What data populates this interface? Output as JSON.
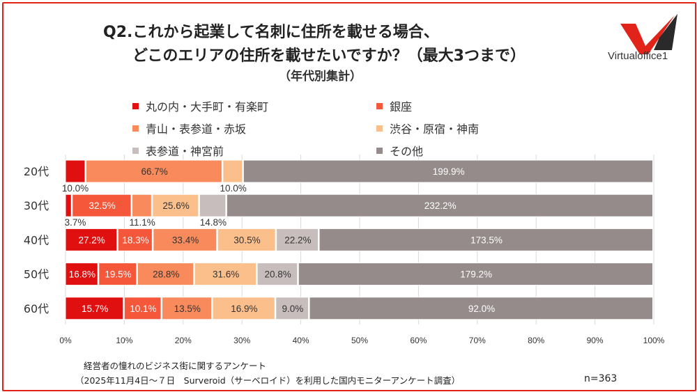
{
  "title_line1": "Q2.これから起業して名刺に住所を載せる場合、",
  "title_line2": "どこのエリアの住所を載せたいですか？（最大3つまで）",
  "subtitle": "（年代別集計）",
  "brand": "Virtualoffice1",
  "footer": {
    "survey_name": "経営者の憧れのビジネス街に関するアンケート",
    "survey_detail": "（2025年11月4日～７日　Surveroid（サーベロイド）を利用した国内モニターアンケート調査）",
    "sample": "n=363"
  },
  "chart_data": {
    "type": "bar",
    "orientation": "horizontal",
    "stacked": "100%",
    "categories": [
      "20代",
      "30代",
      "40代",
      "50代",
      "60代"
    ],
    "series": [
      {
        "name": "丸の内・大手町・有楽町",
        "color": "#e01010",
        "values": [
          10.0,
          3.7,
          27.2,
          16.8,
          15.7
        ],
        "label_color": "#fff"
      },
      {
        "name": "銀座",
        "color": "#f4573a",
        "values": [
          0,
          32.5,
          18.3,
          19.5,
          10.1
        ],
        "label_color": "#fff"
      },
      {
        "name": "青山・表参道・赤坂",
        "color": "#f88a5c",
        "values": [
          66.7,
          11.1,
          33.4,
          28.8,
          13.5
        ],
        "label_color": "#333"
      },
      {
        "name": "渋谷・原宿・神南",
        "color": "#fbbf8c",
        "values": [
          10.0,
          25.6,
          30.5,
          31.6,
          16.9
        ],
        "label_color": "#333"
      },
      {
        "name": "表参道・神宮前",
        "color": "#c8bdbd",
        "values": [
          0,
          14.8,
          22.2,
          20.8,
          9.0
        ],
        "label_color": "#333"
      },
      {
        "name": "その他",
        "color": "#958b8b",
        "values": [
          199.9,
          232.2,
          173.5,
          179.2,
          92.0
        ],
        "label_color": "#fff"
      }
    ],
    "value_labels": [
      [
        "10.0%",
        "",
        "66.7%",
        "10.0%",
        "",
        "199.9%"
      ],
      [
        "3.7%",
        "32.5%",
        "11.1%",
        "25.6%",
        "14.8%",
        "232.2%"
      ],
      [
        "27.2%",
        "18.3%",
        "33.4%",
        "30.5%",
        "22.2%",
        "173.5%"
      ],
      [
        "16.8%",
        "19.5%",
        "28.8%",
        "31.6%",
        "20.8%",
        "179.2%"
      ],
      [
        "15.7%",
        "10.1%",
        "13.5%",
        "16.9%",
        "9.0%",
        "92.0%"
      ]
    ],
    "x_ticks": [
      "0%",
      "10%",
      "20%",
      "30%",
      "40%",
      "50%",
      "60%",
      "70%",
      "80%",
      "90%",
      "100%"
    ],
    "xlim": [
      0,
      100
    ],
    "grid": true,
    "legend_position": "top"
  }
}
